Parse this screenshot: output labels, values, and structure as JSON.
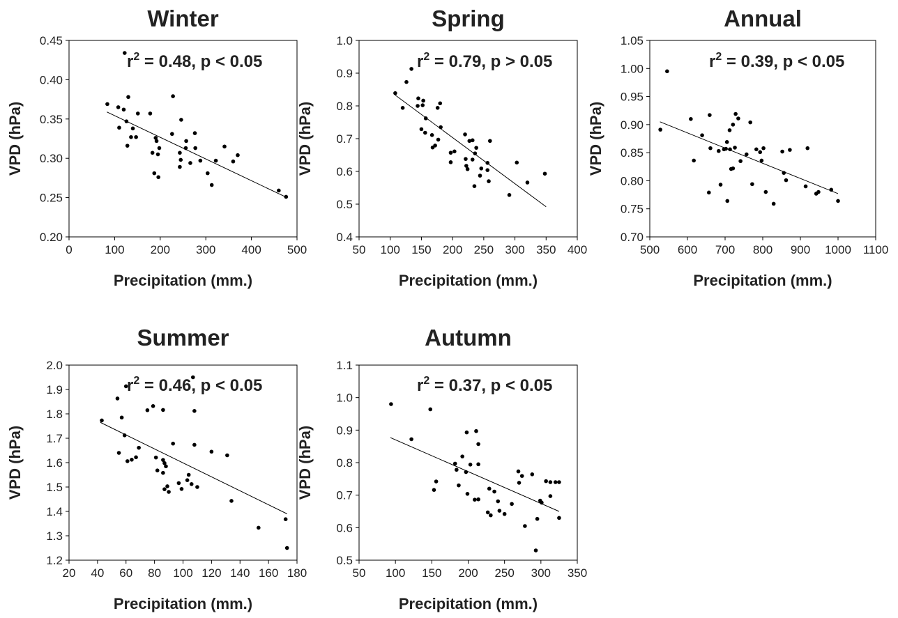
{
  "chart_data": [
    {
      "type": "scatter",
      "title": "Winter",
      "xlabel": "Precipitation (mm.)",
      "ylabel": "VPD (hPa)",
      "xlim": [
        0,
        500
      ],
      "ylim": [
        0.2,
        0.45
      ],
      "xticks": [
        "0",
        "100",
        "200",
        "300",
        "400",
        "500"
      ],
      "yticks": [
        "0.20",
        "0.25",
        "0.30",
        "0.35",
        "0.40",
        "0.45"
      ],
      "annotation": {
        "r_prefix": "r",
        "r_exp": "2",
        "rest": " = 0.48, p < 0.05"
      },
      "trendline": {
        "x": [
          83,
          478
        ],
        "y": [
          0.359,
          0.25
        ]
      },
      "grid": false,
      "points": [
        [
          122,
          0.434
        ],
        [
          84,
          0.369
        ],
        [
          108,
          0.365
        ],
        [
          120,
          0.362
        ],
        [
          130,
          0.378
        ],
        [
          228,
          0.379
        ],
        [
          110,
          0.339
        ],
        [
          126,
          0.347
        ],
        [
          140,
          0.338
        ],
        [
          151,
          0.357
        ],
        [
          178,
          0.357
        ],
        [
          136,
          0.327
        ],
        [
          147,
          0.327
        ],
        [
          128,
          0.316
        ],
        [
          246,
          0.349
        ],
        [
          190,
          0.326
        ],
        [
          192,
          0.322
        ],
        [
          226,
          0.331
        ],
        [
          276,
          0.332
        ],
        [
          257,
          0.322
        ],
        [
          183,
          0.307
        ],
        [
          198,
          0.313
        ],
        [
          195,
          0.305
        ],
        [
          243,
          0.307
        ],
        [
          256,
          0.313
        ],
        [
          277,
          0.313
        ],
        [
          245,
          0.298
        ],
        [
          266,
          0.294
        ],
        [
          288,
          0.297
        ],
        [
          243,
          0.289
        ],
        [
          187,
          0.281
        ],
        [
          196,
          0.276
        ],
        [
          322,
          0.297
        ],
        [
          341,
          0.315
        ],
        [
          360,
          0.296
        ],
        [
          370,
          0.304
        ],
        [
          304,
          0.281
        ],
        [
          313,
          0.266
        ],
        [
          460,
          0.259
        ],
        [
          476,
          0.251
        ]
      ]
    },
    {
      "type": "scatter",
      "title": "Spring",
      "xlabel": "Precipitation (mm.)",
      "ylabel": "VPD (hPa)",
      "xlim": [
        50,
        400
      ],
      "ylim": [
        0.4,
        1.0
      ],
      "xticks": [
        "50",
        "100",
        "150",
        "200",
        "250",
        "300",
        "350",
        "400"
      ],
      "yticks": [
        "0.4",
        "0.5",
        "0.6",
        "0.7",
        "0.8",
        "0.9",
        "1.0"
      ],
      "annotation": {
        "r_prefix": "r",
        "r_exp": "2",
        "rest": " = 0.79, p > 0.05"
      },
      "trendline": {
        "x": [
          108,
          350
        ],
        "y": [
          0.833,
          0.492
        ]
      },
      "grid": false,
      "points": [
        [
          134,
          0.913
        ],
        [
          126,
          0.873
        ],
        [
          108,
          0.839
        ],
        [
          120,
          0.794
        ],
        [
          145,
          0.823
        ],
        [
          153,
          0.816
        ],
        [
          144,
          0.8
        ],
        [
          152,
          0.802
        ],
        [
          176,
          0.794
        ],
        [
          180,
          0.808
        ],
        [
          157,
          0.762
        ],
        [
          150,
          0.729
        ],
        [
          156,
          0.718
        ],
        [
          167,
          0.711
        ],
        [
          181,
          0.735
        ],
        [
          172,
          0.679
        ],
        [
          177,
          0.697
        ],
        [
          168,
          0.673
        ],
        [
          203,
          0.661
        ],
        [
          197,
          0.657
        ],
        [
          197,
          0.628
        ],
        [
          220,
          0.713
        ],
        [
          227,
          0.693
        ],
        [
          232,
          0.695
        ],
        [
          238,
          0.672
        ],
        [
          221,
          0.638
        ],
        [
          232,
          0.636
        ],
        [
          236,
          0.655
        ],
        [
          260,
          0.693
        ],
        [
          222,
          0.617
        ],
        [
          224,
          0.607
        ],
        [
          244,
          0.587
        ],
        [
          256,
          0.626
        ],
        [
          246,
          0.609
        ],
        [
          256,
          0.604
        ],
        [
          235,
          0.555
        ],
        [
          258,
          0.57
        ],
        [
          303,
          0.627
        ],
        [
          291,
          0.528
        ],
        [
          320,
          0.566
        ],
        [
          348,
          0.593
        ]
      ]
    },
    {
      "type": "scatter",
      "title": "Annual",
      "xlabel": "Precipitation (mm.)",
      "ylabel": "VPD (hPa)",
      "xlim": [
        500,
        1100
      ],
      "ylim": [
        0.7,
        1.05
      ],
      "xticks": [
        "500",
        "600",
        "700",
        "800",
        "900",
        "1000",
        "1100"
      ],
      "yticks": [
        "0.70",
        "0.75",
        "0.80",
        "0.85",
        "0.90",
        "0.95",
        "1.00",
        "1.05"
      ],
      "annotation": {
        "r_prefix": "r",
        "r_exp": "2",
        "rest": " = 0.39, p < 0.05"
      },
      "trendline": {
        "x": [
          527,
          1000
        ],
        "y": [
          0.905,
          0.777
        ]
      },
      "grid": false,
      "points": [
        [
          546,
          0.995
        ],
        [
          528,
          0.891
        ],
        [
          609,
          0.91
        ],
        [
          659,
          0.917
        ],
        [
          728,
          0.919
        ],
        [
          735,
          0.911
        ],
        [
          721,
          0.9
        ],
        [
          712,
          0.89
        ],
        [
          639,
          0.881
        ],
        [
          705,
          0.869
        ],
        [
          767,
          0.904
        ],
        [
          617,
          0.836
        ],
        [
          661,
          0.858
        ],
        [
          683,
          0.853
        ],
        [
          697,
          0.856
        ],
        [
          702,
          0.857
        ],
        [
          713,
          0.856
        ],
        [
          726,
          0.859
        ],
        [
          783,
          0.856
        ],
        [
          793,
          0.851
        ],
        [
          802,
          0.858
        ],
        [
          852,
          0.852
        ],
        [
          872,
          0.855
        ],
        [
          919,
          0.858
        ],
        [
          741,
          0.835
        ],
        [
          757,
          0.847
        ],
        [
          797,
          0.836
        ],
        [
          716,
          0.821
        ],
        [
          721,
          0.822
        ],
        [
          856,
          0.814
        ],
        [
          862,
          0.801
        ],
        [
          657,
          0.779
        ],
        [
          688,
          0.793
        ],
        [
          706,
          0.764
        ],
        [
          772,
          0.794
        ],
        [
          808,
          0.78
        ],
        [
          829,
          0.759
        ],
        [
          914,
          0.79
        ],
        [
          942,
          0.777
        ],
        [
          948,
          0.78
        ],
        [
          982,
          0.784
        ],
        [
          1000,
          0.764
        ]
      ]
    },
    {
      "type": "scatter",
      "title": "Summer",
      "xlabel": "Precipitation (mm.)",
      "ylabel": "VPD (hPa)",
      "xlim": [
        20,
        180
      ],
      "ylim": [
        1.2,
        2.0
      ],
      "xticks": [
        "20",
        "40",
        "60",
        "80",
        "100",
        "120",
        "140",
        "160",
        "180"
      ],
      "yticks": [
        "1.2",
        "1.3",
        "1.4",
        "1.5",
        "1.6",
        "1.7",
        "1.8",
        "1.9",
        "2.0"
      ],
      "annotation": {
        "r_prefix": "r",
        "r_exp": "2",
        "rest": " = 0.46, p < 0.05"
      },
      "trendline": {
        "x": [
          42,
          173
        ],
        "y": [
          1.765,
          1.39
        ]
      },
      "grid": false,
      "points": [
        [
          43,
          1.773
        ],
        [
          54,
          1.863
        ],
        [
          57,
          1.785
        ],
        [
          59,
          1.712
        ],
        [
          60,
          1.913
        ],
        [
          55,
          1.64
        ],
        [
          61,
          1.606
        ],
        [
          64,
          1.612
        ],
        [
          67,
          1.622
        ],
        [
          69,
          1.661
        ],
        [
          75,
          1.815
        ],
        [
          79,
          1.832
        ],
        [
          86,
          1.816
        ],
        [
          81,
          1.621
        ],
        [
          82,
          1.568
        ],
        [
          86,
          1.611
        ],
        [
          87,
          1.598
        ],
        [
          88,
          1.585
        ],
        [
          86,
          1.558
        ],
        [
          87,
          1.491
        ],
        [
          89,
          1.503
        ],
        [
          90,
          1.48
        ],
        [
          93,
          1.678
        ],
        [
          97,
          1.516
        ],
        [
          99,
          1.492
        ],
        [
          103,
          1.528
        ],
        [
          104,
          1.55
        ],
        [
          106,
          1.512
        ],
        [
          107,
          1.95
        ],
        [
          108,
          1.812
        ],
        [
          108,
          1.673
        ],
        [
          110,
          1.5
        ],
        [
          120,
          1.645
        ],
        [
          131,
          1.63
        ],
        [
          134,
          1.443
        ],
        [
          153,
          1.333
        ],
        [
          172,
          1.368
        ],
        [
          173,
          1.25
        ]
      ]
    },
    {
      "type": "scatter",
      "title": "Autumn",
      "xlabel": "Precipitation (mm.)",
      "ylabel": "VPD (hPa)",
      "xlim": [
        50,
        350
      ],
      "ylim": [
        0.5,
        1.1
      ],
      "xticks": [
        "50",
        "100",
        "150",
        "200",
        "250",
        "300",
        "350"
      ],
      "yticks": [
        "0.5",
        "0.6",
        "0.7",
        "0.8",
        "0.9",
        "1.0",
        "1.1"
      ],
      "annotation": {
        "r_prefix": "r",
        "r_exp": "2",
        "rest": " = 0.37, p < 0.05"
      },
      "trendline": {
        "x": [
          93,
          325
        ],
        "y": [
          0.877,
          0.65
        ]
      },
      "grid": false,
      "points": [
        [
          94,
          0.98
        ],
        [
          148,
          0.964
        ],
        [
          122,
          0.872
        ],
        [
          198,
          0.893
        ],
        [
          211,
          0.897
        ],
        [
          214,
          0.857
        ],
        [
          182,
          0.797
        ],
        [
          192,
          0.819
        ],
        [
          203,
          0.794
        ],
        [
          214,
          0.795
        ],
        [
          156,
          0.742
        ],
        [
          153,
          0.716
        ],
        [
          184,
          0.778
        ],
        [
          187,
          0.73
        ],
        [
          197,
          0.771
        ],
        [
          199,
          0.704
        ],
        [
          209,
          0.686
        ],
        [
          214,
          0.687
        ],
        [
          229,
          0.72
        ],
        [
          236,
          0.711
        ],
        [
          241,
          0.681
        ],
        [
          227,
          0.647
        ],
        [
          231,
          0.638
        ],
        [
          243,
          0.652
        ],
        [
          250,
          0.642
        ],
        [
          260,
          0.673
        ],
        [
          269,
          0.773
        ],
        [
          274,
          0.759
        ],
        [
          270,
          0.738
        ],
        [
          288,
          0.764
        ],
        [
          307,
          0.743
        ],
        [
          313,
          0.74
        ],
        [
          320,
          0.74
        ],
        [
          325,
          0.74
        ],
        [
          313,
          0.697
        ],
        [
          299,
          0.683
        ],
        [
          301,
          0.677
        ],
        [
          295,
          0.627
        ],
        [
          278,
          0.605
        ],
        [
          325,
          0.63
        ],
        [
          293,
          0.53
        ]
      ]
    }
  ]
}
